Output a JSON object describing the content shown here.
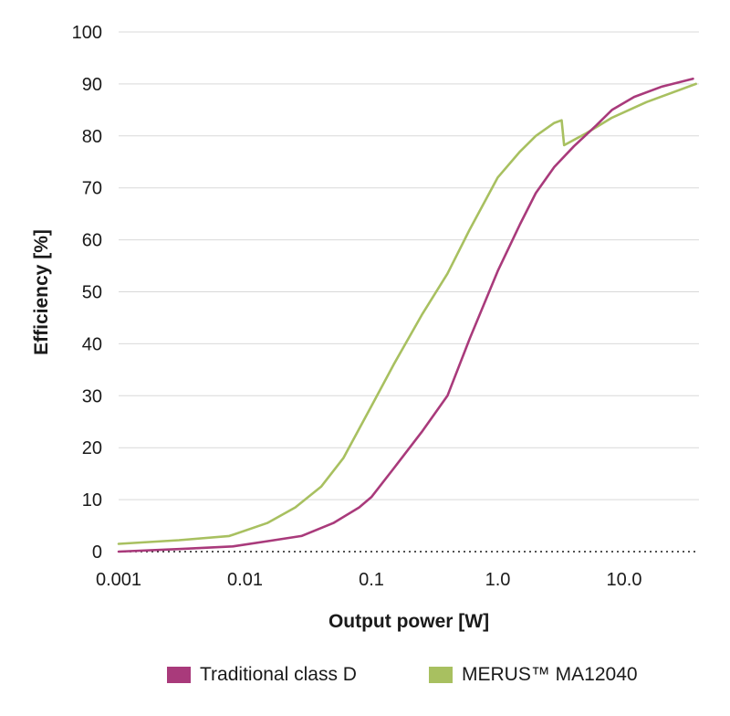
{
  "chart_data": {
    "type": "line",
    "title": "",
    "xlabel": "Output power [W]",
    "ylabel": "Efficiency [%]",
    "xscale": "log",
    "xlim": [
      0.001,
      40
    ],
    "ylim": [
      0,
      100
    ],
    "x_ticks": [
      0.001,
      0.01,
      0.1,
      1.0,
      10.0
    ],
    "x_tick_labels": [
      "0.001",
      "0.01",
      "0.1",
      "1.0",
      "10.0"
    ],
    "y_ticks": [
      0,
      10,
      20,
      30,
      40,
      50,
      60,
      70,
      80,
      90,
      100
    ],
    "y_tick_labels": [
      "0",
      "10",
      "20",
      "30",
      "40",
      "50",
      "60",
      "70",
      "80",
      "90",
      "100"
    ],
    "grid": "horizontal",
    "legend_position": "bottom",
    "series": [
      {
        "name": "Traditional class D",
        "color": "#a93a7b",
        "x": [
          0.001,
          0.003,
          0.008,
          0.015,
          0.028,
          0.05,
          0.08,
          0.1,
          0.15,
          0.25,
          0.4,
          0.6,
          1.0,
          1.5,
          2.0,
          2.8,
          4.0,
          6.0,
          8.0,
          12.0,
          20.0,
          35.0
        ],
        "y": [
          0,
          0.5,
          1,
          2,
          3,
          5.5,
          8.5,
          10.5,
          16,
          23,
          30,
          41,
          54,
          63,
          69,
          74,
          78,
          82,
          85,
          87.5,
          89.5,
          91
        ]
      },
      {
        "name": "MERUS™  MA12040",
        "color": "#a8c060",
        "x": [
          0.001,
          0.003,
          0.0075,
          0.015,
          0.025,
          0.04,
          0.06,
          0.1,
          0.15,
          0.25,
          0.4,
          0.6,
          1.0,
          1.5,
          2.0,
          2.8,
          3.2,
          3.35,
          5.0,
          8.0,
          15.0,
          37.0
        ],
        "y": [
          1.5,
          2.2,
          3,
          5.5,
          8.5,
          12.5,
          18,
          28,
          36,
          45.5,
          53.5,
          62,
          72,
          77,
          80,
          82.5,
          83,
          78.2,
          80.5,
          83.5,
          86.5,
          90
        ]
      }
    ]
  }
}
